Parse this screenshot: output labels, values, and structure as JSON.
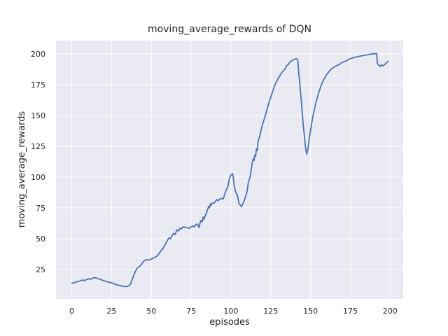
{
  "window": {
    "title": "moving_average_rewards of DQN"
  },
  "chart_data": {
    "type": "line",
    "title": "moving_average_rewards of DQN",
    "xlabel": "episodes",
    "ylabel": "moving_average_rewards",
    "x_ticks": [
      0,
      25,
      50,
      75,
      100,
      125,
      150,
      175,
      200
    ],
    "y_ticks": [
      25,
      50,
      75,
      100,
      125,
      150,
      175,
      200
    ],
    "xlim": [
      -9.9,
      208.2
    ],
    "ylim": [
      1.1,
      210.9
    ],
    "grid": true,
    "legend": "none",
    "series_name": "moving_average_rewards",
    "colors": {
      "line": "#4C72B0",
      "plot_background": "#EAEAF2",
      "grid": "#FFFFFF",
      "figure_background": "#FFFFFF",
      "text": "#262626"
    },
    "points": [
      [
        0,
        13.8
      ],
      [
        1,
        14.1
      ],
      [
        2,
        14.4
      ],
      [
        3,
        14.9
      ],
      [
        4,
        15.2
      ],
      [
        5,
        15.6
      ],
      [
        6,
        16.2
      ],
      [
        7,
        16.4
      ],
      [
        8,
        16.0
      ],
      [
        9,
        16.6
      ],
      [
        10,
        17.1
      ],
      [
        11,
        17.4
      ],
      [
        12,
        17.1
      ],
      [
        13,
        17.9
      ],
      [
        14,
        18.3
      ],
      [
        15,
        18.2
      ],
      [
        16,
        17.8
      ],
      [
        17,
        17.4
      ],
      [
        18,
        16.9
      ],
      [
        19,
        16.4
      ],
      [
        20,
        16.0
      ],
      [
        21,
        15.5
      ],
      [
        22,
        15.1
      ],
      [
        23,
        14.8
      ],
      [
        24,
        14.5
      ],
      [
        25,
        14.2
      ],
      [
        26,
        13.7
      ],
      [
        27,
        13.1
      ],
      [
        28,
        12.7
      ],
      [
        29,
        12.3
      ],
      [
        30,
        12.0
      ],
      [
        31,
        11.7
      ],
      [
        32,
        11.4
      ],
      [
        33,
        11.2
      ],
      [
        34,
        11.1
      ],
      [
        35,
        11.3
      ],
      [
        36,
        11.8
      ],
      [
        37,
        13.5
      ],
      [
        38,
        17.0
      ],
      [
        39,
        20.5
      ],
      [
        40,
        23.5
      ],
      [
        41,
        25.9
      ],
      [
        42,
        26.9
      ],
      [
        43,
        27.8
      ],
      [
        44,
        29.5
      ],
      [
        45,
        31.5
      ],
      [
        46,
        32.5
      ],
      [
        47,
        33.0
      ],
      [
        48,
        32.6
      ],
      [
        49,
        32.8
      ],
      [
        50,
        33.5
      ],
      [
        51,
        34.0
      ],
      [
        52,
        34.7
      ],
      [
        53,
        35.4
      ],
      [
        54,
        36.4
      ],
      [
        55,
        38.2
      ],
      [
        56,
        40.1
      ],
      [
        57,
        41.5
      ],
      [
        58,
        43.5
      ],
      [
        59,
        46.0
      ],
      [
        60,
        48.5
      ],
      [
        61,
        50.5
      ],
      [
        62,
        50.0
      ],
      [
        63,
        52.5
      ],
      [
        64,
        54.3
      ],
      [
        65,
        53.4
      ],
      [
        66,
        57.2
      ],
      [
        67,
        56.2
      ],
      [
        68,
        58.5
      ],
      [
        69,
        58.1
      ],
      [
        70,
        59.6
      ],
      [
        71,
        59.3
      ],
      [
        72,
        59.1
      ],
      [
        73,
        58.7
      ],
      [
        74,
        58.5
      ],
      [
        75,
        59.6
      ],
      [
        76,
        60.4
      ],
      [
        77,
        59.6
      ],
      [
        78,
        61.5
      ],
      [
        79,
        61.9
      ],
      [
        80,
        59.1
      ],
      [
        81,
        64.7
      ],
      [
        82,
        63.8
      ],
      [
        82.5,
        67.6
      ],
      [
        83,
        65.7
      ],
      [
        84,
        69.0
      ],
      [
        85,
        72.5
      ],
      [
        86,
        76.1
      ],
      [
        86.5,
        75.1
      ],
      [
        87,
        78.0
      ],
      [
        87.5,
        77.0
      ],
      [
        88,
        78.9
      ],
      [
        89,
        78.4
      ],
      [
        90,
        79.9
      ],
      [
        91,
        81.8
      ],
      [
        92,
        80.8
      ],
      [
        93,
        82.2
      ],
      [
        94,
        82.7
      ],
      [
        95,
        82.2
      ],
      [
        96,
        85.6
      ],
      [
        97,
        89.4
      ],
      [
        98,
        92.2
      ],
      [
        99,
        98.8
      ],
      [
        100,
        101.7
      ],
      [
        101,
        102.8
      ],
      [
        101.5,
        99.8
      ],
      [
        102,
        93.1
      ],
      [
        103,
        87.5
      ],
      [
        104,
        85.6
      ],
      [
        105,
        78.9
      ],
      [
        106,
        77.0
      ],
      [
        106.5,
        76.1
      ],
      [
        107,
        77.0
      ],
      [
        108,
        79.9
      ],
      [
        109,
        83.6
      ],
      [
        110,
        87.5
      ],
      [
        111,
        96.0
      ],
      [
        112,
        99.8
      ],
      [
        112.5,
        104.5
      ],
      [
        113,
        108.3
      ],
      [
        113.5,
        112.0
      ],
      [
        114,
        115.0
      ],
      [
        114.5,
        113.5
      ],
      [
        115,
        118.0
      ],
      [
        115.5,
        117.0
      ],
      [
        116,
        123.0
      ],
      [
        116.5,
        121.5
      ],
      [
        117,
        128.6
      ],
      [
        118,
        133.0
      ],
      [
        119,
        138.5
      ],
      [
        120,
        143.5
      ],
      [
        121,
        147.5
      ],
      [
        122,
        152.0
      ],
      [
        123,
        156.5
      ],
      [
        124,
        161.0
      ],
      [
        125,
        165.0
      ],
      [
        126,
        169.0
      ],
      [
        127,
        172.5
      ],
      [
        128,
        176.0
      ],
      [
        129,
        178.5
      ],
      [
        130,
        181.0
      ],
      [
        131,
        183.0
      ],
      [
        132,
        185.0
      ],
      [
        133,
        186.5
      ],
      [
        134,
        188.0
      ],
      [
        135,
        190.6
      ],
      [
        136,
        191.5
      ],
      [
        137,
        193.5
      ],
      [
        138,
        194.3
      ],
      [
        139,
        195.3
      ],
      [
        140,
        195.8
      ],
      [
        141,
        196.3
      ],
      [
        142,
        195.3
      ],
      [
        142.5,
        185.8
      ],
      [
        143.2,
        176.4
      ],
      [
        144,
        165.0
      ],
      [
        144.7,
        153.7
      ],
      [
        145.4,
        142.3
      ],
      [
        146.2,
        132.8
      ],
      [
        146.9,
        123.4
      ],
      [
        147.6,
        118.7
      ],
      [
        148.4,
        123.4
      ],
      [
        149.1,
        130.0
      ],
      [
        149.8,
        136.6
      ],
      [
        150.5,
        142.3
      ],
      [
        151.3,
        148.0
      ],
      [
        152,
        152.7
      ],
      [
        153.5,
        161.2
      ],
      [
        155,
        167.9
      ],
      [
        156.4,
        173.6
      ],
      [
        157.9,
        178.3
      ],
      [
        160,
        183.0
      ],
      [
        162.3,
        186.8
      ],
      [
        164.5,
        189.3
      ],
      [
        166,
        190.2
      ],
      [
        168,
        191.5
      ],
      [
        170,
        193.2
      ],
      [
        172.5,
        194.5
      ],
      [
        174.7,
        196.1
      ],
      [
        177,
        197.0
      ],
      [
        179,
        197.6
      ],
      [
        181.5,
        198.4
      ],
      [
        183.5,
        198.9
      ],
      [
        186,
        199.5
      ],
      [
        188,
        199.9
      ],
      [
        190,
        200.2
      ],
      [
        191.5,
        200.5
      ],
      [
        192,
        192.3
      ],
      [
        192.5,
        191.5
      ],
      [
        193,
        190.8
      ],
      [
        193.8,
        190.0
      ],
      [
        194.5,
        191.3
      ],
      [
        195.3,
        190.4
      ],
      [
        196,
        190.8
      ],
      [
        196.7,
        191.7
      ],
      [
        197.5,
        192.6
      ],
      [
        198.2,
        193.6
      ],
      [
        199,
        194.1
      ]
    ]
  }
}
